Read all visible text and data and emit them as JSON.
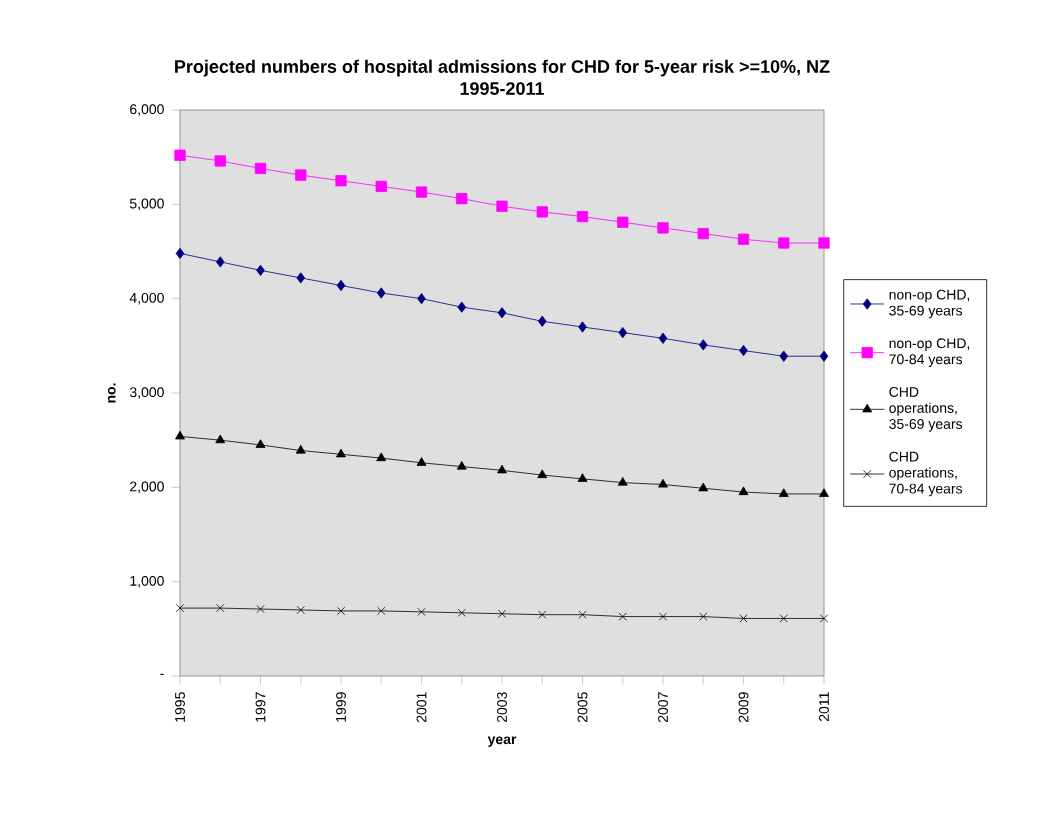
{
  "chart_data": {
    "type": "line",
    "title": "Projected numbers of hospital admissions for CHD for 5-year risk >=10%, NZ 1995-2011",
    "xlabel": "year",
    "ylabel": "no.",
    "x": [
      1995,
      1996,
      1997,
      1998,
      1999,
      2000,
      2001,
      2002,
      2003,
      2004,
      2005,
      2006,
      2007,
      2008,
      2009,
      2010,
      2011
    ],
    "series": [
      {
        "name": "non-op CHD, 35-69 years",
        "color": "#000080",
        "marker": "diamond",
        "values": [
          4480,
          4390,
          4300,
          4220,
          4140,
          4060,
          4000,
          3910,
          3850,
          3760,
          3700,
          3640,
          3580,
          3510,
          3450,
          3390,
          3390
        ]
      },
      {
        "name": "non-op CHD, 70-84 years",
        "color": "#ff00ff",
        "marker": "square",
        "values": [
          5520,
          5460,
          5380,
          5310,
          5250,
          5190,
          5130,
          5060,
          4980,
          4920,
          4870,
          4810,
          4750,
          4690,
          4630,
          4590,
          4590
        ]
      },
      {
        "name": "CHD operations, 35-69 years",
        "color": "#000000",
        "marker": "triangle",
        "values": [
          2540,
          2500,
          2450,
          2390,
          2350,
          2310,
          2260,
          2220,
          2180,
          2130,
          2090,
          2050,
          2030,
          1990,
          1950,
          1930,
          1930
        ]
      },
      {
        "name": "CHD operations, 70-84 years",
        "color": "#000000",
        "marker": "cross",
        "values": [
          720,
          720,
          710,
          700,
          690,
          690,
          680,
          670,
          660,
          650,
          650,
          630,
          630,
          630,
          610,
          610,
          610
        ]
      }
    ],
    "xlim": [
      1995,
      2011
    ],
    "xticks": [
      1995,
      {
        "value": 1996,
        "label": null
      },
      1997,
      {
        "value": 1998,
        "label": null
      },
      1999,
      {
        "value": 2000,
        "label": null
      },
      2001,
      {
        "value": 2002,
        "label": null
      },
      2003,
      {
        "value": 2004,
        "label": null
      },
      2005,
      {
        "value": 2006,
        "label": null
      },
      2007,
      {
        "value": 2008,
        "label": null
      },
      2009,
      {
        "value": 2010,
        "label": null
      },
      2011
    ],
    "ylim": [
      0,
      6000
    ],
    "yticks": [
      {
        "value": 0,
        "label": "-"
      },
      {
        "value": 1000,
        "label": "1,000"
      },
      {
        "value": 2000,
        "label": "2,000"
      },
      {
        "value": 3000,
        "label": "3,000"
      },
      {
        "value": 4000,
        "label": "4,000"
      },
      {
        "value": 5000,
        "label": "5,000"
      },
      {
        "value": 6000,
        "label": "6,000"
      }
    ],
    "grid": false,
    "legend": "right",
    "line_style": "solid"
  }
}
